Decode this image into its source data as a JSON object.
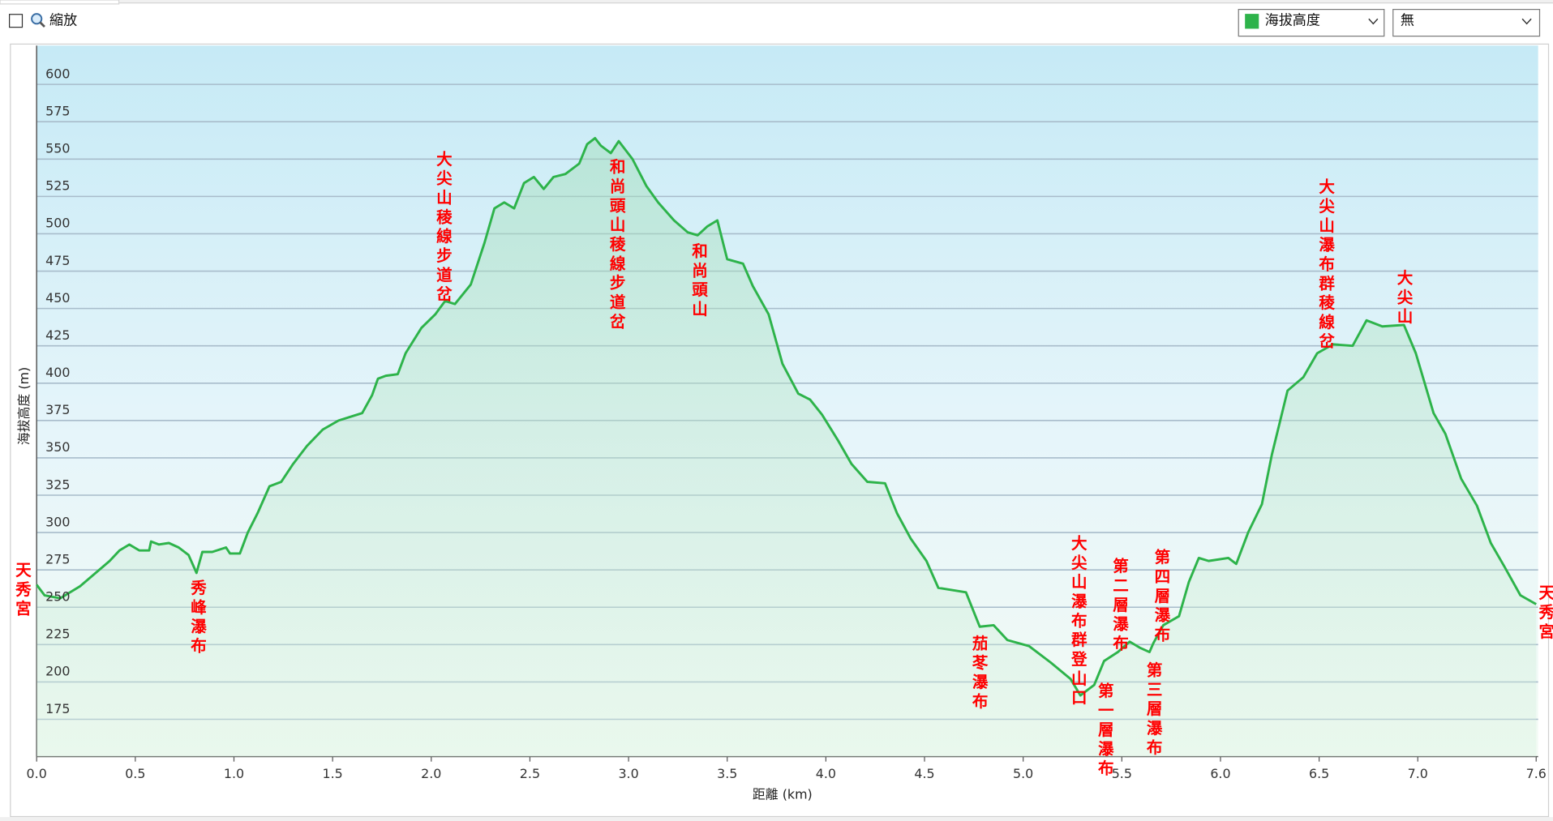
{
  "toolbar": {
    "zoom_label": "縮放",
    "series_select": "海拔高度",
    "overlay_select": "無"
  },
  "chart_data": {
    "type": "line",
    "x_label": "距離 (km)",
    "y_label": "海拔高度 (m)",
    "xlim": [
      0,
      7.61
    ],
    "ylim": [
      150,
      626
    ],
    "xticks": [
      {
        "value": 0,
        "label": "0.0"
      },
      0.5,
      {
        "value": 1,
        "label": "1.0"
      },
      1.5,
      {
        "value": 2,
        "label": "2.0"
      },
      2.5,
      {
        "value": 3,
        "label": "3.0"
      },
      3.5,
      {
        "value": 4,
        "label": "4.0"
      },
      4.5,
      {
        "value": 5,
        "label": "5.0"
      },
      5.5,
      {
        "value": 6,
        "label": "6.0"
      },
      6.5,
      {
        "value": 7,
        "label": "7.0"
      },
      7.6
    ],
    "yticks": [
      175,
      200,
      225,
      250,
      275,
      300,
      325,
      350,
      375,
      400,
      425,
      450,
      475,
      500,
      525,
      550,
      575,
      600
    ],
    "grid": true,
    "x": [
      0,
      0.04,
      0.12,
      0.22,
      0.37,
      0.42,
      0.47,
      0.52,
      0.57,
      0.58,
      0.62,
      0.67,
      0.72,
      0.77,
      0.81,
      0.84,
      0.89,
      0.96,
      0.98,
      1.03,
      1.07,
      1.12,
      1.18,
      1.24,
      1.3,
      1.37,
      1.45,
      1.53,
      1.65,
      1.7,
      1.73,
      1.77,
      1.83,
      1.87,
      1.95,
      2.02,
      2.07,
      2.12,
      2.2,
      2.27,
      2.32,
      2.37,
      2.42,
      2.47,
      2.52,
      2.57,
      2.62,
      2.68,
      2.75,
      2.79,
      2.83,
      2.86,
      2.91,
      2.95,
      3.02,
      3.09,
      3.15,
      3.23,
      3.3,
      3.35,
      3.4,
      3.45,
      3.5,
      3.58,
      3.63,
      3.71,
      3.78,
      3.86,
      3.92,
      3.98,
      4.06,
      4.13,
      4.21,
      4.3,
      4.36,
      4.43,
      4.51,
      4.57,
      4.71,
      4.78,
      4.85,
      4.92,
      5.03,
      5.14,
      5.24,
      5.29,
      5.36,
      5.41,
      5.48,
      5.54,
      5.59,
      5.64,
      5.66,
      5.71,
      5.79,
      5.84,
      5.89,
      5.94,
      6.04,
      6.08,
      6.14,
      6.21,
      6.26,
      6.34,
      6.42,
      6.49,
      6.57,
      6.67,
      6.74,
      6.82,
      6.93,
      6.99,
      7.08,
      7.14,
      7.22,
      7.3,
      7.37,
      7.44,
      7.52,
      7.6
    ],
    "series": [
      {
        "name": "海拔高度",
        "color": "#2db34a",
        "values": [
          265,
          258,
          256,
          264,
          281,
          288,
          292,
          288,
          288,
          294,
          292,
          293,
          290,
          285,
          273,
          287,
          287,
          290,
          286,
          286,
          300,
          313,
          331,
          334,
          346,
          358,
          369,
          375,
          380,
          392,
          403,
          405,
          406,
          420,
          437,
          446,
          455,
          453,
          466,
          494,
          517,
          521,
          517,
          534,
          538,
          530,
          538,
          540,
          547,
          560,
          564,
          559,
          554,
          562,
          550,
          532,
          521,
          509,
          501,
          499,
          505,
          509,
          483,
          480,
          465,
          446,
          413,
          393,
          389,
          379,
          362,
          346,
          334,
          333,
          313,
          296,
          281,
          263,
          260,
          237,
          238,
          228,
          224,
          213,
          202,
          191,
          198,
          214,
          220,
          227,
          223,
          220,
          226,
          238,
          244,
          267,
          283,
          281,
          283,
          279,
          300,
          319,
          352,
          395,
          404,
          420,
          426,
          425,
          442,
          438,
          439,
          420,
          380,
          366,
          336,
          318,
          293,
          277,
          258,
          252
        ]
      }
    ],
    "annotation_color": "#ff0000",
    "annotations": [
      "天秀宮",
      "秀峰瀑布",
      "大尖山稜線步道岔",
      "和尚頭山稜線步道岔",
      "和尚頭山",
      "茄苳瀑布",
      "大尖山瀑布群登山口",
      "第一層瀑布",
      "第二層瀑布",
      "第三層瀑布",
      "第四層瀑布",
      "大尖山瀑布群稜線岔",
      "大尖山",
      "天秀宮"
    ]
  }
}
